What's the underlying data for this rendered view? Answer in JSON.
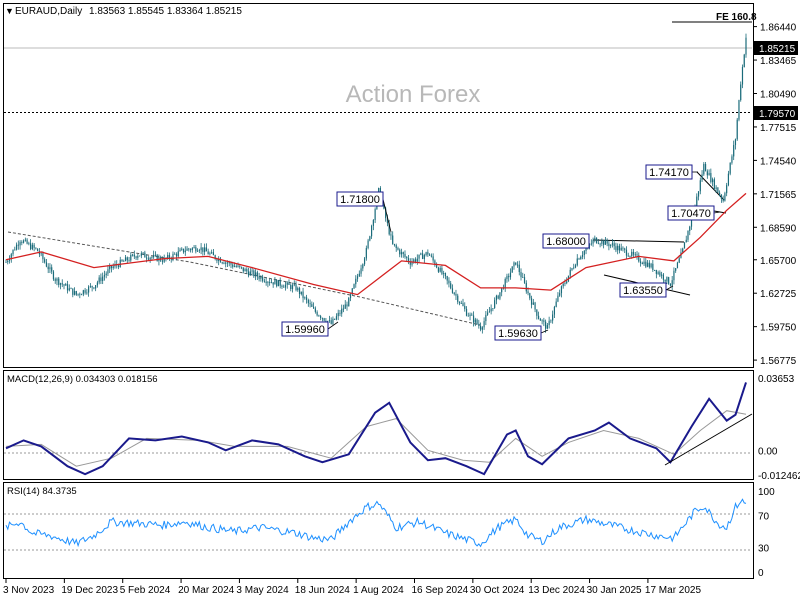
{
  "app": {
    "title": "EURAUD,Daily",
    "ohlc": "1.83563 1.85545 1.83364 1.85215",
    "watermark": "Action Forex"
  },
  "colors": {
    "background": "#ffffff",
    "candle": "#1a6b7a",
    "moving_average": "#d42020",
    "trendline": "#000000",
    "macd_line": "#1a1a8c",
    "macd_signal": "#999999",
    "rsi_line": "#1e90ff",
    "level_box_border": "#1a1a8c"
  },
  "chart_data": [
    {
      "type": "candlestick",
      "title": "EURAUD,Daily",
      "subtitle": "1.83563 1.85545 1.83364 1.85215",
      "ylim": [
        1.5625,
        1.8685
      ],
      "y_ticks": [
        "1.86440",
        "1.83465",
        "1.80490",
        "1.77515",
        "1.74540",
        "1.71565",
        "1.68590",
        "1.65700",
        "1.62725",
        "1.59750",
        "1.56775"
      ],
      "x_ticks": [
        "3 Nov 2023",
        "19 Dec 2023",
        "5 Feb 2024",
        "20 Mar 2024",
        "3 May 2024",
        "18 Jun 2024",
        "1 Aug 2024",
        "16 Sep 2024",
        "30 Oct 2024",
        "13 Dec 2024",
        "30 Jan 2025",
        "17 Mar 2025"
      ],
      "price_path": [
        [
          0,
          1.655
        ],
        [
          8,
          1.675
        ],
        [
          18,
          1.665
        ],
        [
          28,
          1.64
        ],
        [
          40,
          1.626
        ],
        [
          50,
          1.634
        ],
        [
          60,
          1.65
        ],
        [
          75,
          1.662
        ],
        [
          90,
          1.657
        ],
        [
          102,
          1.666
        ],
        [
          110,
          1.668
        ],
        [
          118,
          1.66
        ],
        [
          135,
          1.648
        ],
        [
          150,
          1.638
        ],
        [
          165,
          1.632
        ],
        [
          175,
          1.612
        ],
        [
          185,
          1.6
        ],
        [
          195,
          1.62
        ],
        [
          205,
          1.665
        ],
        [
          212,
          1.718
        ],
        [
          220,
          1.67
        ],
        [
          230,
          1.655
        ],
        [
          240,
          1.663
        ],
        [
          250,
          1.64
        ],
        [
          262,
          1.61
        ],
        [
          270,
          1.597
        ],
        [
          280,
          1.625
        ],
        [
          290,
          1.655
        ],
        [
          297,
          1.627
        ],
        [
          303,
          1.606
        ],
        [
          308,
          1.596
        ],
        [
          315,
          1.628
        ],
        [
          325,
          1.658
        ],
        [
          335,
          1.675
        ],
        [
          345,
          1.67
        ],
        [
          355,
          1.662
        ],
        [
          368,
          1.65
        ],
        [
          378,
          1.636
        ],
        [
          385,
          1.665
        ],
        [
          392,
          1.705
        ],
        [
          397,
          1.741
        ],
        [
          403,
          1.723
        ],
        [
          408,
          1.71
        ],
        [
          415,
          1.765
        ],
        [
          418,
          1.815
        ],
        [
          421,
          1.855
        ]
      ],
      "moving_average": [
        [
          0,
          1.657
        ],
        [
          20,
          1.664
        ],
        [
          50,
          1.65
        ],
        [
          90,
          1.658
        ],
        [
          115,
          1.66
        ],
        [
          140,
          1.65
        ],
        [
          175,
          1.635
        ],
        [
          200,
          1.626
        ],
        [
          225,
          1.656
        ],
        [
          250,
          1.652
        ],
        [
          270,
          1.632
        ],
        [
          290,
          1.632
        ],
        [
          310,
          1.63
        ],
        [
          330,
          1.65
        ],
        [
          360,
          1.66
        ],
        [
          380,
          1.656
        ],
        [
          395,
          1.677
        ],
        [
          410,
          1.701
        ],
        [
          421,
          1.716
        ]
      ],
      "levels": [
        {
          "label": "1.85215",
          "value": 1.85215,
          "style": "current"
        },
        {
          "label": "1.79570",
          "value": 1.7957,
          "style": "dotted"
        },
        {
          "label": "FE 160.8",
          "value": 1.8685,
          "style": "solid"
        }
      ],
      "annotations": [
        "1.71800",
        "1.59960",
        "1.68000",
        "1.59630",
        "1.74170",
        "1.70470",
        "1.63550"
      ]
    },
    {
      "type": "line",
      "title": "MACD(12,26,9) 0.034303 0.018156",
      "ylim": [
        -0.012462,
        0.03653
      ],
      "y_ticks": [
        "0.03653",
        "0.00",
        "-0.012462"
      ],
      "series": [
        {
          "values": [
            [
              0,
              0.001
            ],
            [
              10,
              0.005
            ],
            [
              20,
              0.002
            ],
            [
              35,
              -0.008
            ],
            [
              45,
              -0.012
            ],
            [
              55,
              -0.008
            ],
            [
              70,
              0.006
            ],
            [
              85,
              0.005
            ],
            [
              100,
              0.007
            ],
            [
              115,
              0.004
            ],
            [
              125,
              0.0
            ],
            [
              140,
              0.005
            ],
            [
              155,
              0.003
            ],
            [
              170,
              -0.003
            ],
            [
              180,
              -0.006
            ],
            [
              195,
              -0.002
            ],
            [
              210,
              0.019
            ],
            [
              218,
              0.024
            ],
            [
              230,
              0.004
            ],
            [
              240,
              -0.005
            ],
            [
              250,
              -0.004
            ],
            [
              262,
              -0.008
            ],
            [
              272,
              -0.012
            ],
            [
              285,
              0.008
            ],
            [
              290,
              0.01
            ],
            [
              297,
              -0.003
            ],
            [
              305,
              -0.007
            ],
            [
              320,
              0.006
            ],
            [
              335,
              0.01
            ],
            [
              343,
              0.014
            ],
            [
              355,
              0.006
            ],
            [
              370,
              0.001
            ],
            [
              378,
              -0.006
            ],
            [
              390,
              0.012
            ],
            [
              400,
              0.026
            ],
            [
              410,
              0.015
            ],
            [
              415,
              0.018
            ],
            [
              421,
              0.0343
            ]
          ]
        },
        {
          "values": [
            [
              0,
              0.002
            ],
            [
              20,
              0.003
            ],
            [
              40,
              -0.008
            ],
            [
              60,
              -0.004
            ],
            [
              80,
              0.006
            ],
            [
              110,
              0.005
            ],
            [
              130,
              0.002
            ],
            [
              160,
              0.002
            ],
            [
              185,
              -0.004
            ],
            [
              205,
              0.012
            ],
            [
              222,
              0.016
            ],
            [
              240,
              0.0
            ],
            [
              260,
              -0.005
            ],
            [
              275,
              -0.006
            ],
            [
              290,
              0.006
            ],
            [
              305,
              -0.003
            ],
            [
              320,
              0.004
            ],
            [
              340,
              0.01
            ],
            [
              360,
              0.006
            ],
            [
              380,
              -0.002
            ],
            [
              395,
              0.01
            ],
            [
              410,
              0.02
            ],
            [
              421,
              0.0182
            ]
          ]
        }
      ]
    },
    {
      "type": "line",
      "title": "RSI(14) 84.3735",
      "ylim": [
        0,
        100
      ],
      "y_ticks": [
        "100",
        "70",
        "30",
        "0"
      ],
      "series": [
        {
          "values": [
            [
              0,
              55
            ],
            [
              8,
              62
            ],
            [
              15,
              48
            ],
            [
              25,
              45
            ],
            [
              40,
              35
            ],
            [
              50,
              45
            ],
            [
              60,
              62
            ],
            [
              75,
              60
            ],
            [
              90,
              58
            ],
            [
              102,
              62
            ],
            [
              115,
              55
            ],
            [
              130,
              50
            ],
            [
              145,
              55
            ],
            [
              165,
              48
            ],
            [
              175,
              42
            ],
            [
              185,
              40
            ],
            [
              195,
              62
            ],
            [
              205,
              80
            ],
            [
              212,
              85
            ],
            [
              222,
              55
            ],
            [
              235,
              62
            ],
            [
              250,
              48
            ],
            [
              262,
              40
            ],
            [
              270,
              35
            ],
            [
              280,
              55
            ],
            [
              290,
              65
            ],
            [
              297,
              45
            ],
            [
              305,
              38
            ],
            [
              315,
              55
            ],
            [
              330,
              65
            ],
            [
              340,
              60
            ],
            [
              355,
              52
            ],
            [
              370,
              45
            ],
            [
              380,
              42
            ],
            [
              392,
              75
            ],
            [
              397,
              82
            ],
            [
              405,
              60
            ],
            [
              410,
              55
            ],
            [
              415,
              80
            ],
            [
              418,
              88
            ],
            [
              421,
              84
            ]
          ]
        }
      ]
    }
  ]
}
